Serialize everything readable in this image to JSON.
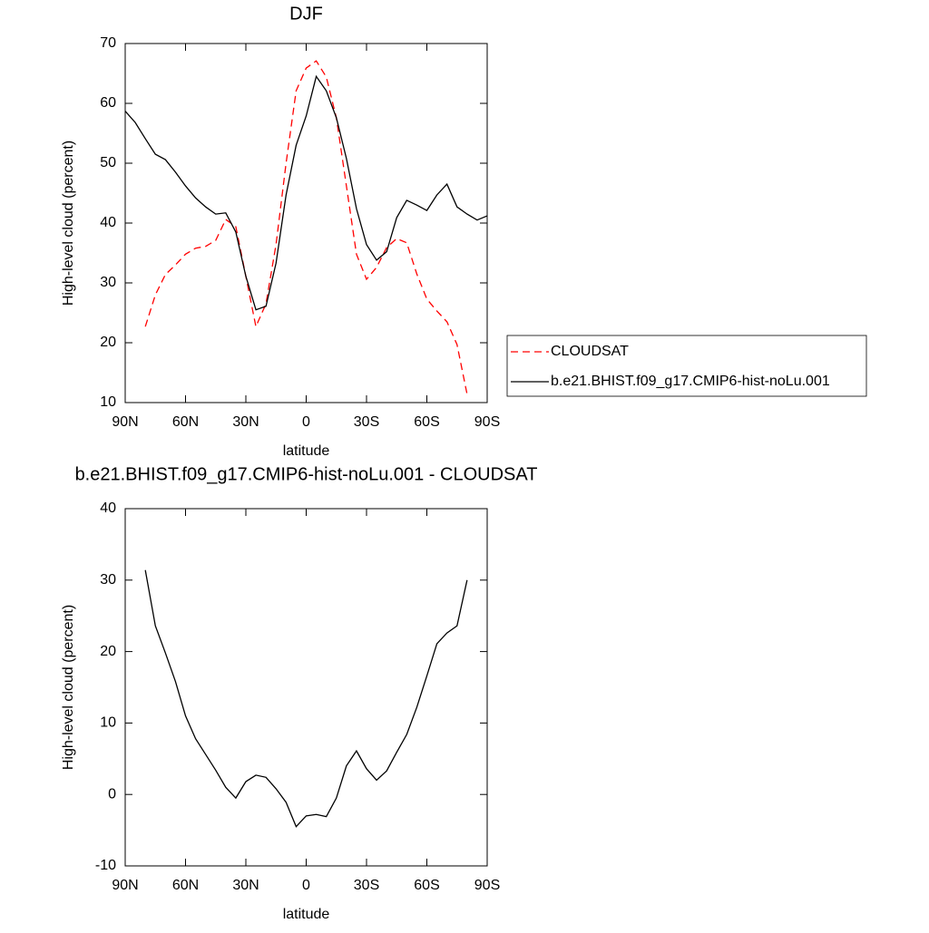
{
  "chart_data": [
    {
      "type": "line",
      "title": "DJF",
      "xlabel": "latitude",
      "ylabel": "High-level cloud (percent)",
      "x": [
        90,
        85,
        80,
        75,
        70,
        65,
        60,
        55,
        50,
        45,
        40,
        35,
        30,
        25,
        20,
        15,
        10,
        5,
        0,
        -5,
        -10,
        -15,
        -20,
        -25,
        -30,
        -35,
        -40,
        -45,
        -50,
        -55,
        -60,
        -65,
        -70,
        -75,
        -80,
        -85,
        -90
      ],
      "xlim": [
        90,
        -90
      ],
      "xticks": [
        {
          "value": 90,
          "label": "90N"
        },
        {
          "value": 60,
          "label": "60N"
        },
        {
          "value": 30,
          "label": "30N"
        },
        0,
        {
          "value": -30,
          "label": "30S"
        },
        {
          "value": -60,
          "label": "60S"
        },
        {
          "value": -90,
          "label": "90S"
        }
      ],
      "ylim": [
        10,
        70
      ],
      "yticks": [
        10,
        20,
        30,
        40,
        50,
        60,
        70
      ],
      "legend": "right",
      "series": [
        {
          "name": "CLOUDSAT",
          "color": "#ff0000",
          "line_style": "dashed",
          "values": [
            null,
            null,
            22.7,
            28,
            31.4,
            33,
            34.8,
            35.8,
            36.1,
            37.1,
            40.6,
            39.4,
            31.1,
            22.7,
            26.5,
            36.4,
            50,
            62.1,
            65.9,
            67.1,
            64.4,
            57.6,
            46.2,
            34.8,
            30.6,
            32.6,
            35.9,
            37.4,
            36.7,
            31.5,
            27.3,
            25.3,
            23.5,
            19.7,
            11.4,
            null,
            null
          ]
        },
        {
          "name": "b.e21.BHIST.f09_g17.CMIP6-hist-noLu.001",
          "color": "#000000",
          "line_style": "solid",
          "values": [
            58.7,
            56.8,
            54.1,
            51.5,
            50.6,
            48.5,
            46.2,
            44.2,
            42.7,
            41.5,
            41.7,
            38.5,
            31.1,
            25.5,
            26.1,
            33.3,
            44.7,
            53,
            57.9,
            64.5,
            62.1,
            57.6,
            50.8,
            42.4,
            36.4,
            33.8,
            35.2,
            40.9,
            43.8,
            43,
            42.1,
            44.7,
            46.5,
            42.7,
            41.5,
            40.5,
            41.2
          ]
        }
      ]
    },
    {
      "type": "line",
      "title": "b.e21.BHIST.f09_g17.CMIP6-hist-noLu.001 - CLOUDSAT",
      "xlabel": "latitude",
      "ylabel": "High-level cloud (percent)",
      "x": [
        90,
        85,
        80,
        75,
        70,
        65,
        60,
        55,
        50,
        45,
        40,
        35,
        30,
        25,
        20,
        15,
        10,
        5,
        0,
        -5,
        -10,
        -15,
        -20,
        -25,
        -30,
        -35,
        -40,
        -45,
        -50,
        -55,
        -60,
        -65,
        -70,
        -75,
        -80,
        -85,
        -90
      ],
      "xlim": [
        90,
        -90
      ],
      "xticks": [
        {
          "value": 90,
          "label": "90N"
        },
        {
          "value": 60,
          "label": "60N"
        },
        {
          "value": 30,
          "label": "30N"
        },
        0,
        {
          "value": -30,
          "label": "30S"
        },
        {
          "value": -60,
          "label": "60S"
        },
        {
          "value": -90,
          "label": "90S"
        }
      ],
      "ylim": [
        -10,
        40
      ],
      "yticks": [
        -10,
        0,
        10,
        20,
        30,
        40
      ],
      "color": "#000000",
      "values": [
        null,
        null,
        31.4,
        23.6,
        19.8,
        15.8,
        11,
        7.8,
        5.6,
        3.4,
        1,
        -0.5,
        1.8,
        2.7,
        2.4,
        0.8,
        -1.1,
        -4.5,
        -3,
        -2.8,
        -3.1,
        -0.5,
        4,
        6.1,
        3.6,
        2,
        3.3,
        5.9,
        8.4,
        12.2,
        16.6,
        21.1,
        22.6,
        23.6,
        30,
        null,
        null
      ]
    }
  ]
}
